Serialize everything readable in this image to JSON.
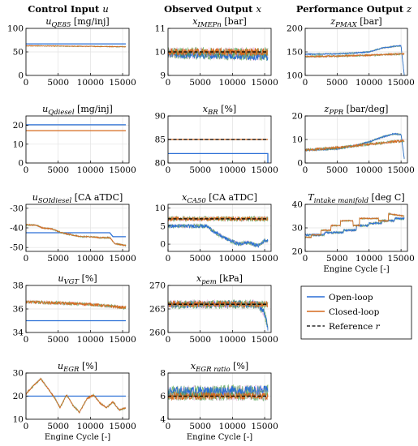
{
  "figure": {
    "column_headers": [
      {
        "main": "Control Input",
        "symbol": "u"
      },
      {
        "main": "Observed Output",
        "symbol": "x"
      },
      {
        "main": "Performance Output",
        "symbol": "z"
      }
    ],
    "legend": {
      "open": "Open-loop",
      "closed": "Closed-loop",
      "reference": "Reference",
      "reference_symbol": "r"
    },
    "colors": {
      "open": "#2a6fd6",
      "closed": "#d66a1e",
      "noise_green": "#3c9a3c",
      "noise_pink": "#e89ad2",
      "reference": "#000000",
      "purple": "#8e3dba"
    }
  },
  "chart_data": [
    {
      "type": "line",
      "id": "uQE85",
      "title_var": "u",
      "title_sub": "QE85",
      "title_unit": "[mg/inj]",
      "xlim": [
        0,
        16000
      ],
      "ylim": [
        0,
        100
      ],
      "xticks": [
        "0",
        "5000",
        "10000",
        "15000"
      ],
      "yticks": [
        "0",
        "50",
        "100"
      ],
      "xlabel": "",
      "series": [
        {
          "name": "Open-loop",
          "values": [
            [
              0,
              67
            ],
            [
              15500,
              67
            ]
          ]
        },
        {
          "name": "Closed-loop",
          "values": [
            [
              0,
              63
            ],
            [
              8000,
              62
            ],
            [
              15500,
              61
            ]
          ],
          "noise": 1
        }
      ]
    },
    {
      "type": "line",
      "id": "uQdiesel",
      "title_var": "u",
      "title_sub": "Qdiesel",
      "title_unit": "[mg/inj]",
      "xlim": [
        0,
        16000
      ],
      "ylim": [
        0,
        25
      ],
      "xticks": [
        "0",
        "5000",
        "10000",
        "15000"
      ],
      "yticks": [
        "0",
        "10",
        "20"
      ],
      "xlabel": "",
      "series": [
        {
          "name": "Open-loop",
          "values": [
            [
              0,
              20.3
            ],
            [
              15500,
              20.3
            ]
          ]
        },
        {
          "name": "Closed-loop",
          "values": [
            [
              0,
              17.2
            ],
            [
              15500,
              17.2
            ]
          ]
        }
      ]
    },
    {
      "type": "line",
      "id": "uSOIdiesel",
      "title_var": "u",
      "title_sub": "SOIdiesel",
      "title_unit": "[CA aTDC]",
      "xlim": [
        0,
        16000
      ],
      "ylim": [
        -52,
        -28
      ],
      "xticks": [
        "0",
        "5000",
        "10000",
        "15000"
      ],
      "yticks": [
        "-30",
        "-40",
        "-50"
      ],
      "xlabel": "",
      "series": [
        {
          "name": "Open-loop",
          "values": [
            [
              0,
              -42.5
            ],
            [
              13000,
              -42.5
            ],
            [
              13500,
              -44.5
            ],
            [
              15500,
              -44.5
            ]
          ]
        },
        {
          "name": "Closed-loop",
          "values": [
            [
              0,
              -38.5
            ],
            [
              1500,
              -38.5
            ],
            [
              2500,
              -40
            ],
            [
              4000,
              -40.5
            ],
            [
              5500,
              -42.5
            ],
            [
              7000,
              -43.5
            ],
            [
              8500,
              -44.5
            ],
            [
              10000,
              -44.5
            ],
            [
              11500,
              -45
            ],
            [
              13000,
              -45
            ],
            [
              13800,
              -48
            ],
            [
              15500,
              -49
            ]
          ],
          "noise": 0.4
        }
      ]
    },
    {
      "type": "line",
      "id": "uVGT",
      "title_var": "u",
      "title_sub": "VGT",
      "title_unit": "[%]",
      "xlim": [
        0,
        16000
      ],
      "ylim": [
        34,
        38
      ],
      "xticks": [
        "0",
        "5000",
        "10000",
        "15000"
      ],
      "yticks": [
        "34",
        "36",
        "38"
      ],
      "xlabel": "",
      "series": [
        {
          "name": "Open-loop",
          "values": [
            [
              0,
              35
            ],
            [
              15500,
              35
            ]
          ]
        },
        {
          "name": "Closed-loop",
          "values": [
            [
              0,
              36.6
            ],
            [
              5000,
              36.5
            ],
            [
              10000,
              36.4
            ],
            [
              15500,
              36.1
            ]
          ],
          "noise": 0.15
        }
      ]
    },
    {
      "type": "line",
      "id": "uEGR",
      "title_var": "u",
      "title_sub": "EGR",
      "title_unit": "[%]",
      "xlim": [
        0,
        16000
      ],
      "ylim": [
        10,
        30
      ],
      "xticks": [
        "0",
        "5000",
        "10000",
        "15000"
      ],
      "yticks": [
        "10",
        "20",
        "30"
      ],
      "xlabel": "Engine Cycle [-]",
      "series": [
        {
          "name": "Open-loop",
          "values": [
            [
              0,
              20
            ],
            [
              15500,
              20
            ]
          ]
        },
        {
          "name": "Closed-loop",
          "values": [
            [
              0,
              21
            ],
            [
              1000,
              24
            ],
            [
              2300,
              27.5
            ],
            [
              3500,
              23
            ],
            [
              4500,
              19
            ],
            [
              5300,
              15
            ],
            [
              6300,
              20.5
            ],
            [
              7300,
              16
            ],
            [
              8300,
              13
            ],
            [
              9500,
              19
            ],
            [
              10500,
              20.5
            ],
            [
              11500,
              17
            ],
            [
              12500,
              15
            ],
            [
              13500,
              17.5
            ],
            [
              14500,
              14
            ],
            [
              15500,
              15
            ]
          ],
          "noise": 0.4
        }
      ]
    },
    {
      "type": "line",
      "id": "xIMEPn",
      "title_var": "x",
      "title_sub": "IMEPn",
      "title_unit": "[bar]",
      "xlim": [
        0,
        16000
      ],
      "ylim": [
        9,
        11
      ],
      "xticks": [
        "0",
        "5000",
        "10000",
        "15000"
      ],
      "yticks": [
        "9",
        "10",
        "11"
      ],
      "xlabel": "",
      "reference": 10,
      "series": [
        {
          "name": "Open-loop",
          "values": [
            [
              0,
              9.9
            ],
            [
              15500,
              9.8
            ]
          ],
          "noise": 0.2
        },
        {
          "name": "Closed-loop",
          "values": [
            [
              0,
              10
            ],
            [
              15500,
              10
            ]
          ],
          "noise": 0.2
        }
      ]
    },
    {
      "type": "line",
      "id": "xBR",
      "title_var": "x",
      "title_sub": "BR",
      "title_unit": "[%]",
      "xlim": [
        0,
        16000
      ],
      "ylim": [
        80,
        90
      ],
      "xticks": [
        "0",
        "5000",
        "10000",
        "15000"
      ],
      "yticks": [
        "80",
        "85",
        "90"
      ],
      "xlabel": "",
      "reference": 85,
      "series": [
        {
          "name": "Open-loop",
          "values": [
            [
              0,
              82
            ],
            [
              15500,
              82
            ],
            [
              15500,
              80
            ]
          ]
        },
        {
          "name": "Closed-loop",
          "values": [
            [
              0,
              85
            ],
            [
              15500,
              85
            ]
          ]
        }
      ]
    },
    {
      "type": "line",
      "id": "xCA50",
      "title_var": "x",
      "title_sub": "CA50",
      "title_unit": "[CA aTDC]",
      "xlim": [
        0,
        16000
      ],
      "ylim": [
        -2,
        11
      ],
      "xticks": [
        "0",
        "5000",
        "10000",
        "15000"
      ],
      "yticks": [
        "0",
        "5",
        "10"
      ],
      "xlabel": "",
      "reference": 7,
      "series": [
        {
          "name": "Open-loop",
          "values": [
            [
              0,
              5
            ],
            [
              6000,
              5
            ],
            [
              7500,
              3
            ],
            [
              9000,
              1.5
            ],
            [
              11000,
              0
            ],
            [
              12500,
              0.5
            ],
            [
              14000,
              -0.5
            ],
            [
              15000,
              1
            ],
            [
              15500,
              1
            ]
          ],
          "noise": 0.6
        },
        {
          "name": "Closed-loop",
          "values": [
            [
              0,
              7
            ],
            [
              15500,
              7
            ]
          ],
          "noise": 0.7
        }
      ]
    },
    {
      "type": "line",
      "id": "xpem",
      "title_var": "x",
      "title_sub": "pem",
      "title_unit": "[kPa]",
      "xlim": [
        0,
        16000
      ],
      "ylim": [
        260,
        270
      ],
      "xticks": [
        "0",
        "5000",
        "10000",
        "15000"
      ],
      "yticks": [
        "260",
        "265",
        "270"
      ],
      "xlabel": "",
      "reference": 266,
      "series": [
        {
          "name": "Open-loop",
          "values": [
            [
              0,
              266
            ],
            [
              14000,
              266
            ],
            [
              15000,
              264
            ],
            [
              15500,
              261
            ]
          ],
          "noise": 1
        },
        {
          "name": "Closed-loop",
          "values": [
            [
              0,
              266
            ],
            [
              15500,
              266
            ]
          ],
          "noise": 0.8
        }
      ]
    },
    {
      "type": "line",
      "id": "xEGRratio",
      "title_var": "x",
      "title_sub": "EGR ratio",
      "title_unit": "[%]",
      "xlim": [
        0,
        16000
      ],
      "ylim": [
        4,
        8
      ],
      "xticks": [
        "0",
        "5000",
        "10000",
        "15000"
      ],
      "yticks": [
        "4",
        "6",
        "8"
      ],
      "xlabel": "Engine Cycle [-]",
      "reference": 6,
      "series": [
        {
          "name": "Open-loop",
          "values": [
            [
              0,
              6.4
            ],
            [
              15500,
              6.5
            ]
          ],
          "noise": 0.5
        },
        {
          "name": "Closed-loop",
          "values": [
            [
              0,
              6
            ],
            [
              15500,
              6
            ]
          ],
          "noise": 0.4
        }
      ]
    },
    {
      "type": "line",
      "id": "zPMAX",
      "title_var": "z",
      "title_sub": "PMAX",
      "title_unit": "[bar]",
      "xlim": [
        0,
        16000
      ],
      "ylim": [
        100,
        200
      ],
      "xticks": [
        "0",
        "5000",
        "10000",
        "15000"
      ],
      "yticks": [
        "100",
        "150",
        "200"
      ],
      "xlabel": "",
      "series": [
        {
          "name": "Open-loop",
          "values": [
            [
              0,
              145
            ],
            [
              5000,
              146
            ],
            [
              8000,
              148
            ],
            [
              10000,
              150
            ],
            [
              12000,
              158
            ],
            [
              13000,
              160
            ],
            [
              14000,
              162
            ],
            [
              15000,
              163
            ],
            [
              15500,
              100
            ]
          ],
          "noise": 1.5
        },
        {
          "name": "Closed-loop",
          "values": [
            [
              0,
              140
            ],
            [
              5000,
              141
            ],
            [
              10000,
              143
            ],
            [
              15500,
              146
            ]
          ],
          "noise": 2
        }
      ]
    },
    {
      "type": "line",
      "id": "zPPR",
      "title_var": "z",
      "title_sub": "PPR",
      "title_unit": "[bar/deg]",
      "xlim": [
        0,
        16000
      ],
      "ylim": [
        0,
        20
      ],
      "xticks": [
        "0",
        "5000",
        "10000",
        "15000"
      ],
      "yticks": [
        "0",
        "10",
        "20"
      ],
      "xlabel": "",
      "series": [
        {
          "name": "Open-loop",
          "values": [
            [
              0,
              5.5
            ],
            [
              5000,
              6
            ],
            [
              8000,
              7.5
            ],
            [
              10000,
              9
            ],
            [
              12000,
              11
            ],
            [
              14000,
              12.5
            ],
            [
              15000,
              12
            ],
            [
              15500,
              2
            ]
          ],
          "noise": 0.4
        },
        {
          "name": "Closed-loop",
          "values": [
            [
              0,
              5.5
            ],
            [
              5000,
              6.5
            ],
            [
              10000,
              8
            ],
            [
              15500,
              9.5
            ]
          ],
          "noise": 0.6
        }
      ]
    },
    {
      "type": "line",
      "id": "Tintake",
      "title_var": "T",
      "title_sub": "intake manifold",
      "title_unit": "[deg C]",
      "xlim": [
        0,
        16000
      ],
      "ylim": [
        20,
        40
      ],
      "xticks": [
        "0",
        "5000",
        "10000",
        "15000"
      ],
      "yticks": [
        "20",
        "30",
        "40"
      ],
      "xlabel": "Engine Cycle [-]",
      "series": [
        {
          "name": "Open-loop",
          "values": [
            [
              0,
              27
            ],
            [
              3000,
              27
            ],
            [
              3000,
              28
            ],
            [
              6000,
              28
            ],
            [
              6000,
              29
            ],
            [
              8000,
              29
            ],
            [
              8000,
              31
            ],
            [
              10000,
              31
            ],
            [
              10000,
              32
            ],
            [
              12000,
              32
            ],
            [
              12000,
              33
            ],
            [
              14000,
              33
            ],
            [
              14000,
              34
            ],
            [
              15500,
              34
            ]
          ],
          "noise": 0.5
        },
        {
          "name": "Closed-loop",
          "values": [
            [
              0,
              26
            ],
            [
              1000,
              26
            ],
            [
              1000,
              27
            ],
            [
              2500,
              27
            ],
            [
              2500,
              29
            ],
            [
              4000,
              29
            ],
            [
              4000,
              31
            ],
            [
              5500,
              31
            ],
            [
              5500,
              33
            ],
            [
              7500,
              33
            ],
            [
              7500,
              31
            ],
            [
              8500,
              31
            ],
            [
              8500,
              34
            ],
            [
              11500,
              34
            ],
            [
              11500,
              33
            ],
            [
              13000,
              33
            ],
            [
              13000,
              36
            ],
            [
              15500,
              35
            ]
          ],
          "noise": 0.3
        }
      ]
    }
  ]
}
